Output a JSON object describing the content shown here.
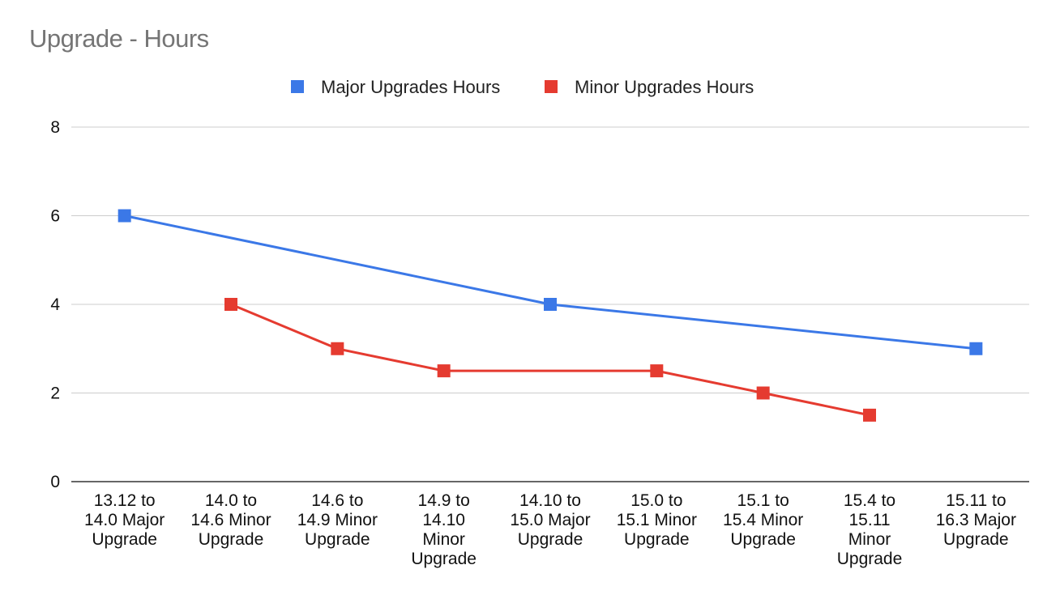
{
  "chart_data": {
    "type": "line",
    "title": "Upgrade - Hours",
    "categories": [
      "13.12 to 14.0 Major Upgrade",
      "14.0 to 14.6 Minor Upgrade",
      "14.6 to 14.9 Minor Upgrade",
      "14.9 to 14.10 Minor Upgrade",
      "14.10 to 15.0 Major Upgrade",
      "15.0 to 15.1 Minor Upgrade",
      "15.1 to 15.4 Minor Upgrade",
      "15.4 to 15.11 Minor Upgrade",
      "15.11 to 16.3 Major Upgrade"
    ],
    "category_lines": [
      [
        "13.12 to",
        "14.0 Major",
        "Upgrade"
      ],
      [
        "14.0 to",
        "14.6 Minor",
        "Upgrade"
      ],
      [
        "14.6 to",
        "14.9 Minor",
        "Upgrade"
      ],
      [
        "14.9 to",
        "14.10",
        "Minor",
        "Upgrade"
      ],
      [
        "14.10 to",
        "15.0 Major",
        "Upgrade"
      ],
      [
        "15.0 to",
        "15.1 Minor",
        "Upgrade"
      ],
      [
        "15.1 to",
        "15.4 Minor",
        "Upgrade"
      ],
      [
        "15.4 to",
        "15.11",
        "Minor",
        "Upgrade"
      ],
      [
        "15.11 to",
        "16.3 Major",
        "Upgrade"
      ]
    ],
    "series": [
      {
        "name": "Major Upgrades Hours",
        "color": "#3b78e7",
        "values": [
          6,
          null,
          null,
          null,
          4,
          null,
          null,
          null,
          3
        ]
      },
      {
        "name": "Minor Upgrades Hours",
        "color": "#e53b30",
        "values": [
          null,
          4,
          3,
          2.5,
          null,
          2.5,
          2,
          1.5,
          null
        ]
      }
    ],
    "ylim": [
      0,
      8
    ],
    "yticks": [
      0,
      2,
      4,
      6,
      8
    ],
    "xlabel": "",
    "ylabel": "",
    "grid": true,
    "legend": "top-center",
    "marker": "square"
  }
}
